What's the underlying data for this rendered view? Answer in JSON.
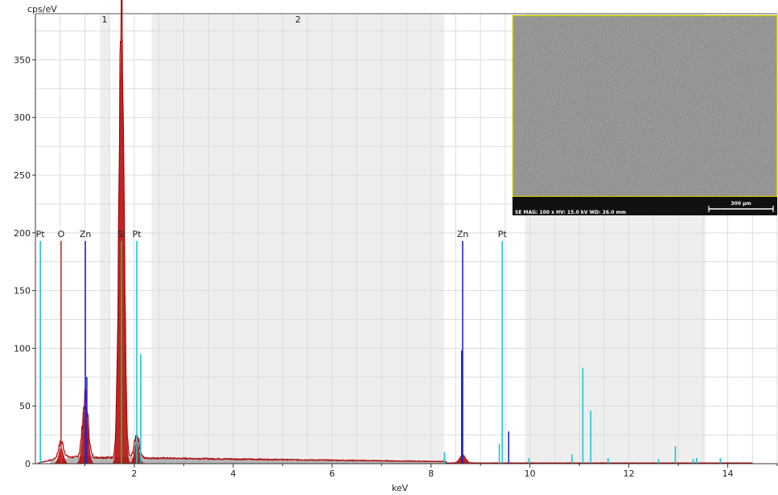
{
  "chart_data": {
    "type": "line",
    "title": "",
    "xlabel": "keV",
    "ylabel": "cps/eV",
    "xlim": [
      0,
      15
    ],
    "ylim": [
      0,
      390
    ],
    "grid": true,
    "x_ticks": [
      2,
      4,
      6,
      8,
      10,
      12,
      14
    ],
    "y_ticks": [
      0,
      50,
      100,
      150,
      200,
      250,
      300,
      350
    ],
    "regions": [
      {
        "label": "1",
        "from": 1.3,
        "to": 1.5
      },
      {
        "label": "2",
        "from": 2.35,
        "to": 8.27
      },
      {
        "label": "",
        "from": 9.9,
        "to": 13.55
      }
    ],
    "spectrum": {
      "color": "#b00000",
      "peaks": [
        {
          "center": 0.52,
          "height": 14,
          "width": 0.05
        },
        {
          "center": 1.01,
          "height": 52,
          "width": 0.055
        },
        {
          "center": 1.74,
          "height": 371,
          "width": 0.05
        },
        {
          "center": 2.05,
          "height": 20,
          "width": 0.05
        },
        {
          "center": 8.64,
          "height": 6,
          "width": 0.06
        }
      ],
      "background": 5
    },
    "element_lines": [
      {
        "element": "Pt",
        "energy": 0.1,
        "height": 193,
        "color": "#19c7d6",
        "labeled": true
      },
      {
        "element": "O",
        "energy": 0.52,
        "height": 193,
        "color": "#e03030",
        "labeled": true
      },
      {
        "element": "Zn",
        "energy": 1.01,
        "height": 193,
        "color": "#2424c8",
        "labeled": true
      },
      {
        "element": "Si",
        "energy": 1.74,
        "height": 193,
        "color": "#30c030",
        "labeled": true
      },
      {
        "element": "Pt",
        "energy": 2.05,
        "height": 193,
        "color": "#19c7d6",
        "labeled": true
      },
      {
        "element": "Zn",
        "energy": 8.64,
        "height": 193,
        "color": "#2424c8",
        "labeled": true
      },
      {
        "element": "Pt",
        "energy": 9.44,
        "height": 193,
        "color": "#19c7d6",
        "labeled": true
      },
      {
        "element": "Zn",
        "energy": 1.04,
        "height": 75,
        "color": "#2424c8",
        "labeled": false
      },
      {
        "element": "Zn",
        "energy": 8.62,
        "height": 98,
        "color": "#2424c8",
        "labeled": false
      },
      {
        "element": "Zn",
        "energy": 9.57,
        "height": 28,
        "color": "#2424c8",
        "labeled": false
      },
      {
        "element": "Pt",
        "energy": 2.13,
        "height": 95,
        "color": "#19c7d6",
        "labeled": false
      },
      {
        "element": "Pt",
        "energy": 9.38,
        "height": 17,
        "color": "#19c7d6",
        "labeled": false
      },
      {
        "element": "Pt",
        "energy": 11.07,
        "height": 83,
        "color": "#19c7d6",
        "labeled": false
      },
      {
        "element": "Pt",
        "energy": 11.23,
        "height": 46,
        "color": "#19c7d6",
        "labeled": false
      },
      {
        "element": "Pt",
        "energy": 12.94,
        "height": 15,
        "color": "#19c7d6",
        "labeled": false
      },
      {
        "element": "Pt",
        "energy": 8.27,
        "height": 10,
        "color": "#19c7d6",
        "labeled": false
      },
      {
        "element": "Pt",
        "energy": 9.98,
        "height": 5,
        "color": "#19c7d6",
        "labeled": false
      },
      {
        "element": "Pt",
        "energy": 10.85,
        "height": 8,
        "color": "#19c7d6",
        "labeled": false
      },
      {
        "element": "Pt",
        "energy": 11.58,
        "height": 5,
        "color": "#19c7d6",
        "labeled": false
      },
      {
        "element": "Pt",
        "energy": 12.6,
        "height": 4,
        "color": "#19c7d6",
        "labeled": false
      },
      {
        "element": "Pt",
        "energy": 13.3,
        "height": 4,
        "color": "#19c7d6",
        "labeled": false
      },
      {
        "element": "Pt",
        "energy": 13.37,
        "height": 5,
        "color": "#19c7d6",
        "labeled": false
      },
      {
        "element": "Pt",
        "energy": 13.85,
        "height": 5,
        "color": "#19c7d6",
        "labeled": false
      }
    ]
  },
  "inset": {
    "info": "SE  MAG: 100 x  HV: 15.0 kV  WD: 26.0 mm",
    "scalebar": "300 µm",
    "frame_color": "#c8c800"
  }
}
